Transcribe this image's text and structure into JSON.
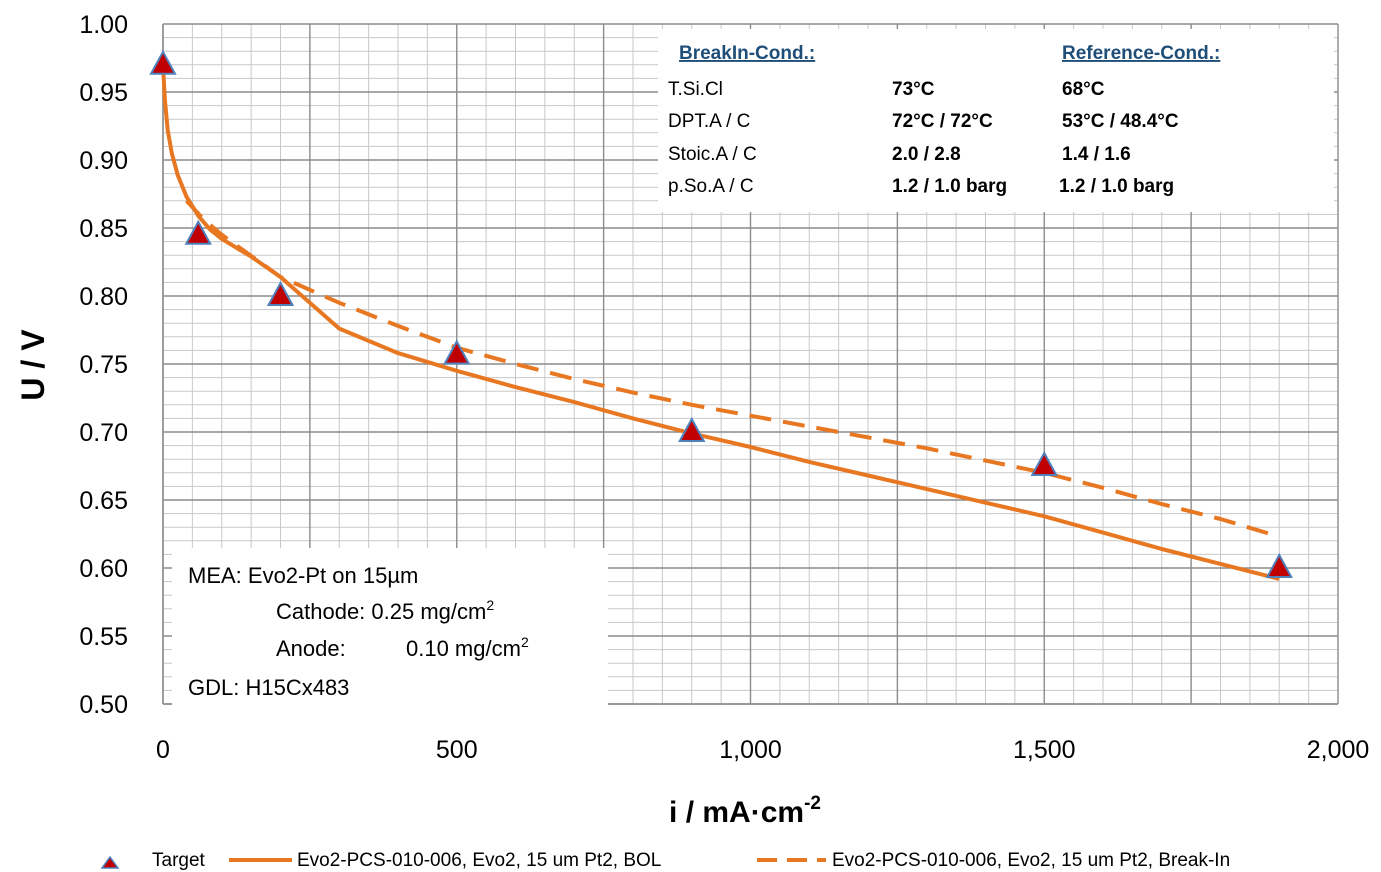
{
  "chart_data": {
    "type": "line",
    "title": "",
    "xlabel": "i / mA·cm",
    "xlabel_sup": "-2",
    "ylabel": "U / V",
    "xlim": [
      0,
      2000
    ],
    "ylim": [
      0.5,
      1.0
    ],
    "x_ticks": [
      "0",
      "500",
      "1,000",
      "1,500",
      "2,000"
    ],
    "x_tick_values": [
      0,
      500,
      1000,
      1500,
      2000
    ],
    "y_ticks": [
      "0.50",
      "0.55",
      "0.60",
      "0.65",
      "0.70",
      "0.75",
      "0.80",
      "0.85",
      "0.90",
      "0.95",
      "1.00"
    ],
    "y_tick_values": [
      0.5,
      0.55,
      0.6,
      0.65,
      0.7,
      0.75,
      0.8,
      0.85,
      0.9,
      0.95,
      1.0
    ],
    "grid": true,
    "legend_position": "bottom",
    "series": [
      {
        "name": "Target",
        "style": "markers",
        "marker": "triangle",
        "color": "#c00000",
        "x": [
          0,
          60,
          200,
          500,
          900,
          1500,
          1900
        ],
        "y": [
          0.97,
          0.845,
          0.8,
          0.757,
          0.7,
          0.675,
          0.6
        ]
      },
      {
        "name": "Evo2-PCS-010-006, Evo2, 15 um Pt2, BOL",
        "style": "solid",
        "color": "#e87722",
        "x": [
          0,
          3,
          8,
          15,
          25,
          40,
          60,
          80,
          100,
          150,
          200,
          300,
          400,
          500,
          600,
          700,
          800,
          900,
          1000,
          1100,
          1200,
          1300,
          1400,
          1500,
          1600,
          1700,
          1800,
          1900
        ],
        "y": [
          0.97,
          0.945,
          0.922,
          0.905,
          0.889,
          0.873,
          0.859,
          0.849,
          0.842,
          0.829,
          0.814,
          0.776,
          0.758,
          0.745,
          0.733,
          0.722,
          0.71,
          0.699,
          0.689,
          0.678,
          0.668,
          0.658,
          0.648,
          0.638,
          0.626,
          0.614,
          0.603,
          0.592
        ]
      },
      {
        "name": "Evo2-PCS-010-006, Evo2, 15 um Pt2, Break-In",
        "style": "dashed",
        "color": "#e87722",
        "x": [
          40,
          70,
          100,
          200,
          300,
          400,
          500,
          600,
          700,
          800,
          900,
          1000,
          1100,
          1200,
          1300,
          1400,
          1500,
          1600,
          1700,
          1800,
          1900
        ],
        "y": [
          0.87,
          0.856,
          0.845,
          0.814,
          0.795,
          0.778,
          0.762,
          0.75,
          0.739,
          0.729,
          0.72,
          0.712,
          0.704,
          0.696,
          0.688,
          0.679,
          0.67,
          0.659,
          0.647,
          0.636,
          0.623
        ]
      }
    ]
  },
  "conditions_box": {
    "col1_header": "BreakIn-Cond.:",
    "col2_header": "Reference-Cond.:",
    "rows": [
      {
        "label": "T.Si.Cl",
        "breakin": "73°C",
        "reference": "68°C"
      },
      {
        "label": "DPT.A / C",
        "breakin": "72°C / 72°C",
        "reference": "53°C / 48.4°C"
      },
      {
        "label": "Stoic.A / C",
        "breakin": "2.0 / 2.8",
        "reference": "1.4 / 1.6"
      },
      {
        "label": "p.So.A / C",
        "breakin": "1.2 / 1.0 barg",
        "reference": "1.2 / 1.0 barg"
      }
    ]
  },
  "mea_box": {
    "line1": "MEA: Evo2-Pt on 15µm",
    "cathode_label": "Cathode: 0.25 mg/cm",
    "cathode_sup": "2",
    "anode_label": "Anode:",
    "anode_value": "0.10 mg/cm",
    "anode_sup": "2",
    "gdl": "GDL:  H15Cx483"
  },
  "colors": {
    "line": "#e87722",
    "marker_fill": "#c00000",
    "marker_edge": "#4f81bd",
    "header_text": "#1f4e79",
    "grid_major": "#8c8c8c",
    "grid_minor": "#c8c8c8"
  }
}
